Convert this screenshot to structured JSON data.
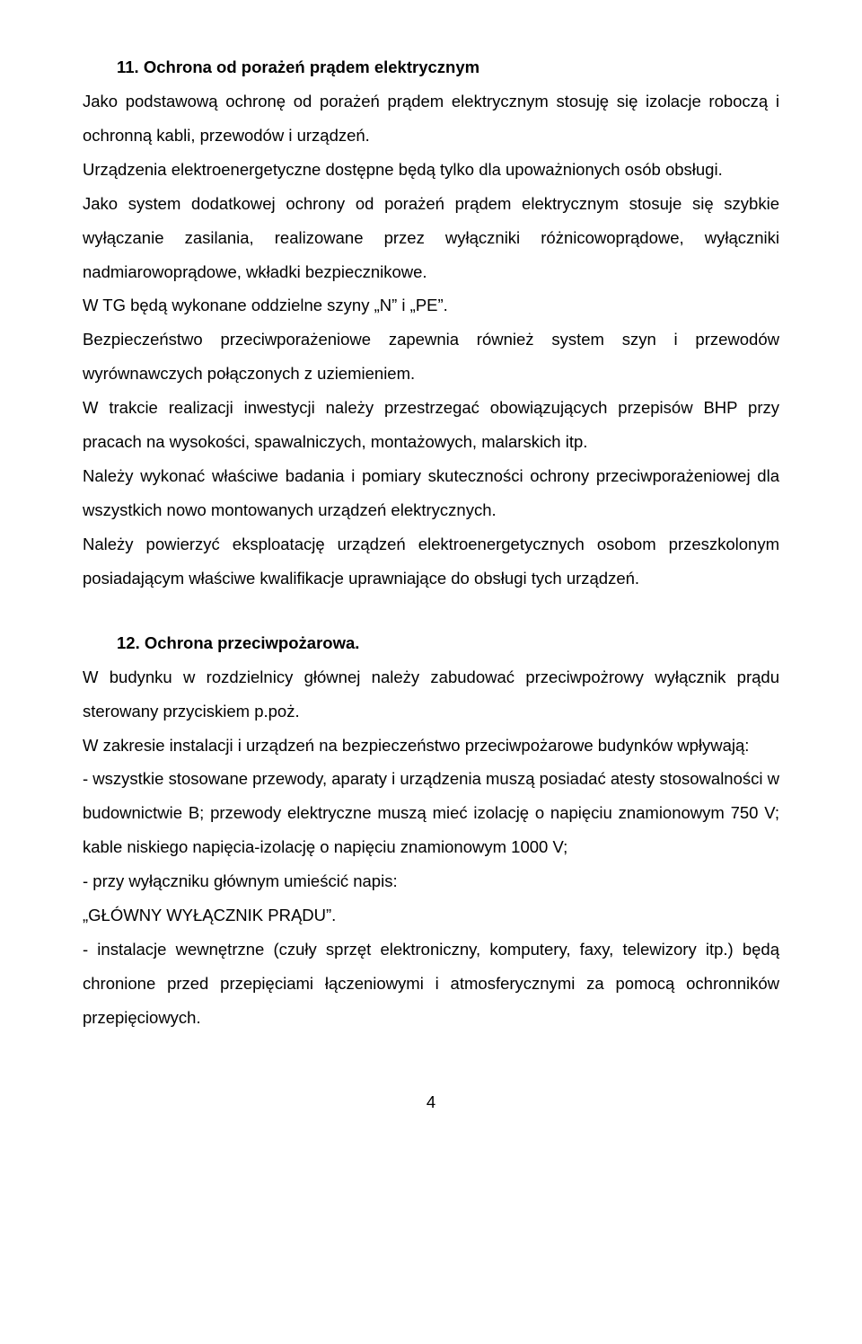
{
  "section11": {
    "heading": "11. Ochrona od porażeń prądem elektrycznym",
    "p1": "Jako podstawową ochronę od porażeń prądem elektrycznym stosuję się izolacje roboczą i ochronną kabli, przewodów i urządzeń.",
    "p2": "Urządzenia elektroenergetyczne dostępne będą tylko dla upoważnionych osób obsługi.",
    "p3": "Jako system dodatkowej ochrony od porażeń prądem elektrycznym stosuje się szybkie wyłączanie zasilania, realizowane przez wyłączniki różnicowoprądowe, wyłączniki nadmiarowoprądowe, wkładki bezpiecznikowe.",
    "p4": "W TG będą wykonane oddzielne szyny „N” i „PE”.",
    "p5": "Bezpieczeństwo przeciwporażeniowe zapewnia również system szyn i przewodów wyrównawczych połączonych z uziemieniem.",
    "p6": "W trakcie realizacji inwestycji należy przestrzegać obowiązujących przepisów BHP przy pracach na wysokości, spawalniczych, montażowych, malarskich itp.",
    "p7": "Należy wykonać właściwe badania i pomiary skuteczności ochrony przeciwporażeniowej dla wszystkich nowo montowanych urządzeń elektrycznych.",
    "p8": "Należy powierzyć eksploatację urządzeń elektroenergetycznych osobom przeszkolonym posiadającym właściwe kwalifikacje uprawniające do obsługi tych urządzeń."
  },
  "section12": {
    "heading": "12. Ochrona przeciwpożarowa.",
    "p1": "W budynku w rozdzielnicy głównej należy zabudować przeciwpożrowy wyłącznik prądu sterowany przyciskiem p.poż.",
    "p2": "W zakresie instalacji i urządzeń na bezpieczeństwo przeciwpożarowe budynków wpływają:",
    "p3": "- wszystkie stosowane przewody, aparaty i urządzenia muszą posiadać atesty stosowalności w budownictwie B; przewody elektryczne muszą mieć izolację o napięciu znamionowym 750 V; kable niskiego napięcia-izolację o napięciu znamionowym 1000 V;",
    "p4": "- przy wyłączniku głównym umieścić napis:",
    "p5": "„GŁÓWNY WYŁĄCZNIK PRĄDU”.",
    "p6": "- instalacje wewnętrzne (czuły sprzęt elektroniczny, komputery, faxy, telewizory itp.) będą chronione przed przepięciami łączeniowymi i atmosferycznymi za pomocą ochronników przepięciowych."
  },
  "pageNumber": "4"
}
